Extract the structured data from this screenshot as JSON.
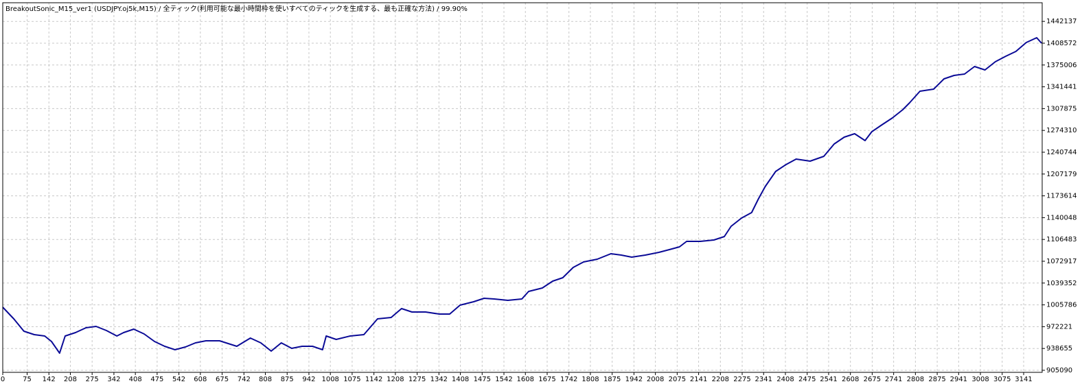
{
  "chart_data": {
    "type": "line",
    "title": "BreakoutSonic_M15_ver1 (USDJPY.oj5k,M15) / 全ティック(利用可能な最小時間枠を使いすべてのティックを生成する、最も正確な方法) / 99.90%",
    "color": "#0a0a96",
    "grid": true,
    "xlim": [
      0,
      3198
    ],
    "ylim": [
      901923,
      1470838
    ],
    "xticks": [
      0,
      75,
      142,
      208,
      275,
      342,
      408,
      475,
      542,
      608,
      675,
      742,
      808,
      875,
      942,
      1008,
      1075,
      1142,
      1208,
      1275,
      1342,
      1408,
      1475,
      1542,
      1608,
      1675,
      1742,
      1808,
      1875,
      1942,
      2008,
      2075,
      2141,
      2208,
      2275,
      2341,
      2408,
      2475,
      2541,
      2608,
      2675,
      2741,
      2808,
      2875,
      2941,
      3008,
      3075,
      3141
    ],
    "yticks": [
      905090,
      938655,
      972221,
      1005786,
      1039352,
      1072917,
      1106483,
      1140048,
      1173614,
      1207179,
      1240744,
      1274310,
      1307875,
      1341441,
      1375006,
      1408572,
      1442137
    ],
    "x": [
      0,
      34,
      65,
      97,
      129,
      150,
      175,
      192,
      224,
      256,
      287,
      319,
      351,
      372,
      403,
      435,
      467,
      498,
      530,
      562,
      593,
      625,
      667,
      720,
      762,
      794,
      826,
      857,
      889,
      921,
      953,
      984,
      995,
      1026,
      1069,
      1111,
      1153,
      1195,
      1227,
      1259,
      1301,
      1343,
      1375,
      1407,
      1449,
      1481,
      1512,
      1554,
      1597,
      1618,
      1660,
      1692,
      1723,
      1755,
      1787,
      1829,
      1871,
      1903,
      1935,
      1977,
      2019,
      2051,
      2082,
      2104,
      2146,
      2188,
      2220,
      2241,
      2273,
      2304,
      2325,
      2346,
      2378,
      2410,
      2441,
      2484,
      2526,
      2558,
      2589,
      2621,
      2653,
      2674,
      2705,
      2737,
      2769,
      2790,
      2822,
      2864,
      2896,
      2927,
      2959,
      2990,
      3022,
      3054,
      3086,
      3117,
      3149,
      3181,
      3196
    ],
    "values": [
      1002196,
      984253,
      965254,
      959976,
      957865,
      949421,
      931478,
      957865,
      963143,
      970531,
      972642,
      966309,
      957865,
      963143,
      968420,
      961032,
      949421,
      942033,
      936755,
      940977,
      947310,
      950477,
      950477,
      942033,
      954699,
      947310,
      934644,
      947310,
      938866,
      942033,
      942033,
      936755,
      957865,
      952588,
      957865,
      959976,
      984253,
      986364,
      1000085,
      994808,
      994808,
      991641,
      991641,
      1005363,
      1010640,
      1015918,
      1014862,
      1012751,
      1014862,
      1026473,
      1031750,
      1042305,
      1047583,
      1063415,
      1071859,
      1076081,
      1084525,
      1082414,
      1079248,
      1082414,
      1086636,
      1090858,
      1095080,
      1103524,
      1103524,
      1105635,
      1110913,
      1126745,
      1139411,
      1147855,
      1168965,
      1187964,
      1211185,
      1221740,
      1230184,
      1227018,
      1234406,
      1253405,
      1263960,
      1269238,
      1258683,
      1272404,
      1282959,
      1293514,
      1306180,
      1316735,
      1334679,
      1337845,
      1353678,
      1358955,
      1361066,
      1372677,
      1367399,
      1380065,
      1388509,
      1395898,
      1409619,
      1417008,
      1408564
    ]
  }
}
